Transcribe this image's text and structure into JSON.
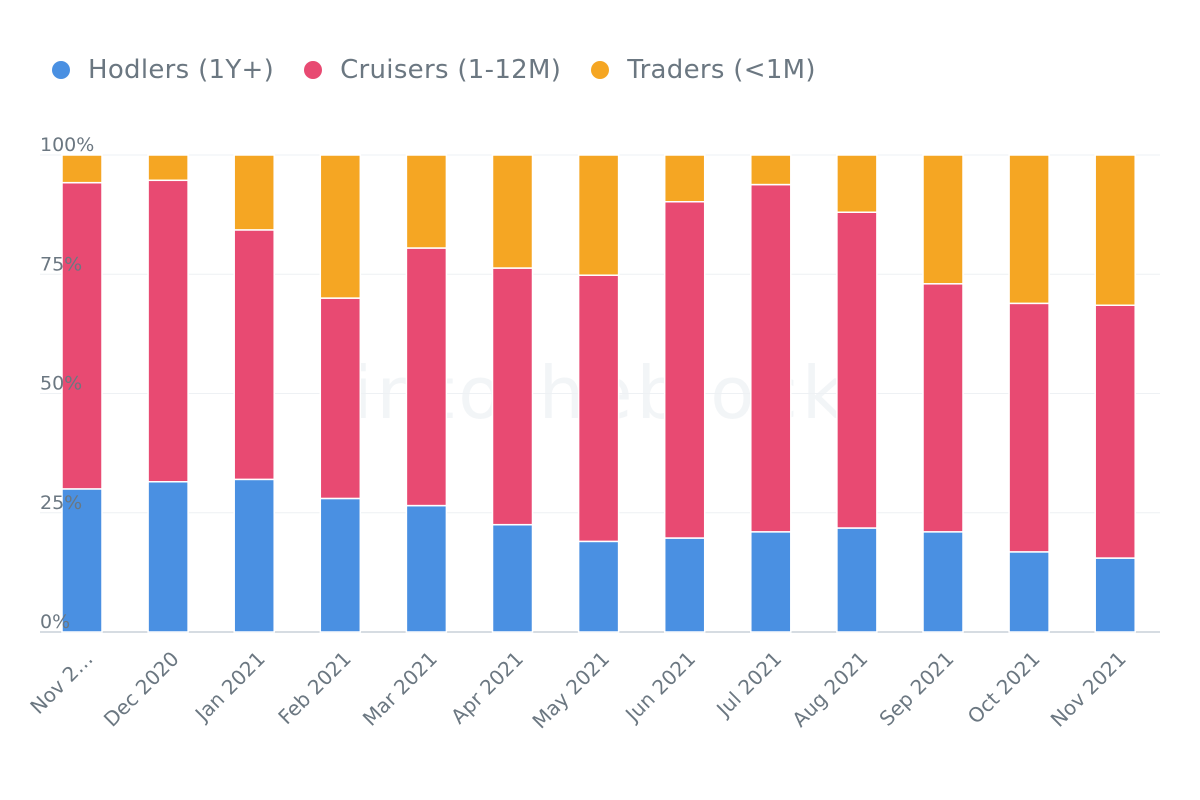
{
  "legend": [
    {
      "label": "Hodlers (1Y+)",
      "color": "#4a90e2"
    },
    {
      "label": "Cruisers (1-12M)",
      "color": "#e84a72"
    },
    {
      "label": "Traders (<1M)",
      "color": "#f5a623"
    }
  ],
  "watermark": "intotheblock",
  "chart_data": {
    "type": "bar",
    "stacked": true,
    "categories": [
      "Nov 2…",
      "Dec 2020",
      "Jan 2021",
      "Feb 2021",
      "Mar 2021",
      "Apr 2021",
      "May 2021",
      "Jun 2021",
      "Jul 2021",
      "Aug 2021",
      "Sep 2021",
      "Oct 2021",
      "Nov 2021"
    ],
    "series": [
      {
        "name": "Hodlers (1Y+)",
        "color": "#4a90e2",
        "values": [
          30,
          31.5,
          32,
          28,
          26.5,
          22.5,
          19,
          19.7,
          21,
          21.8,
          21,
          16.8,
          15.5
        ]
      },
      {
        "name": "Cruisers (1-12M)",
        "color": "#e84a72",
        "values": [
          64.2,
          63.2,
          52.3,
          42,
          54,
          53.8,
          55.8,
          70.5,
          72.8,
          66.2,
          52,
          52.1,
          53
        ]
      },
      {
        "name": "Traders (<1M)",
        "color": "#f5a623",
        "values": [
          5.8,
          5.3,
          15.7,
          30,
          19.5,
          23.7,
          25.2,
          9.8,
          6.2,
          12,
          27,
          31.1,
          31.5
        ]
      }
    ],
    "yticks": [
      "0%",
      "25%",
      "50%",
      "75%",
      "100%"
    ],
    "ylim": [
      0,
      100
    ],
    "grid": true,
    "legend_position": "top-left"
  }
}
